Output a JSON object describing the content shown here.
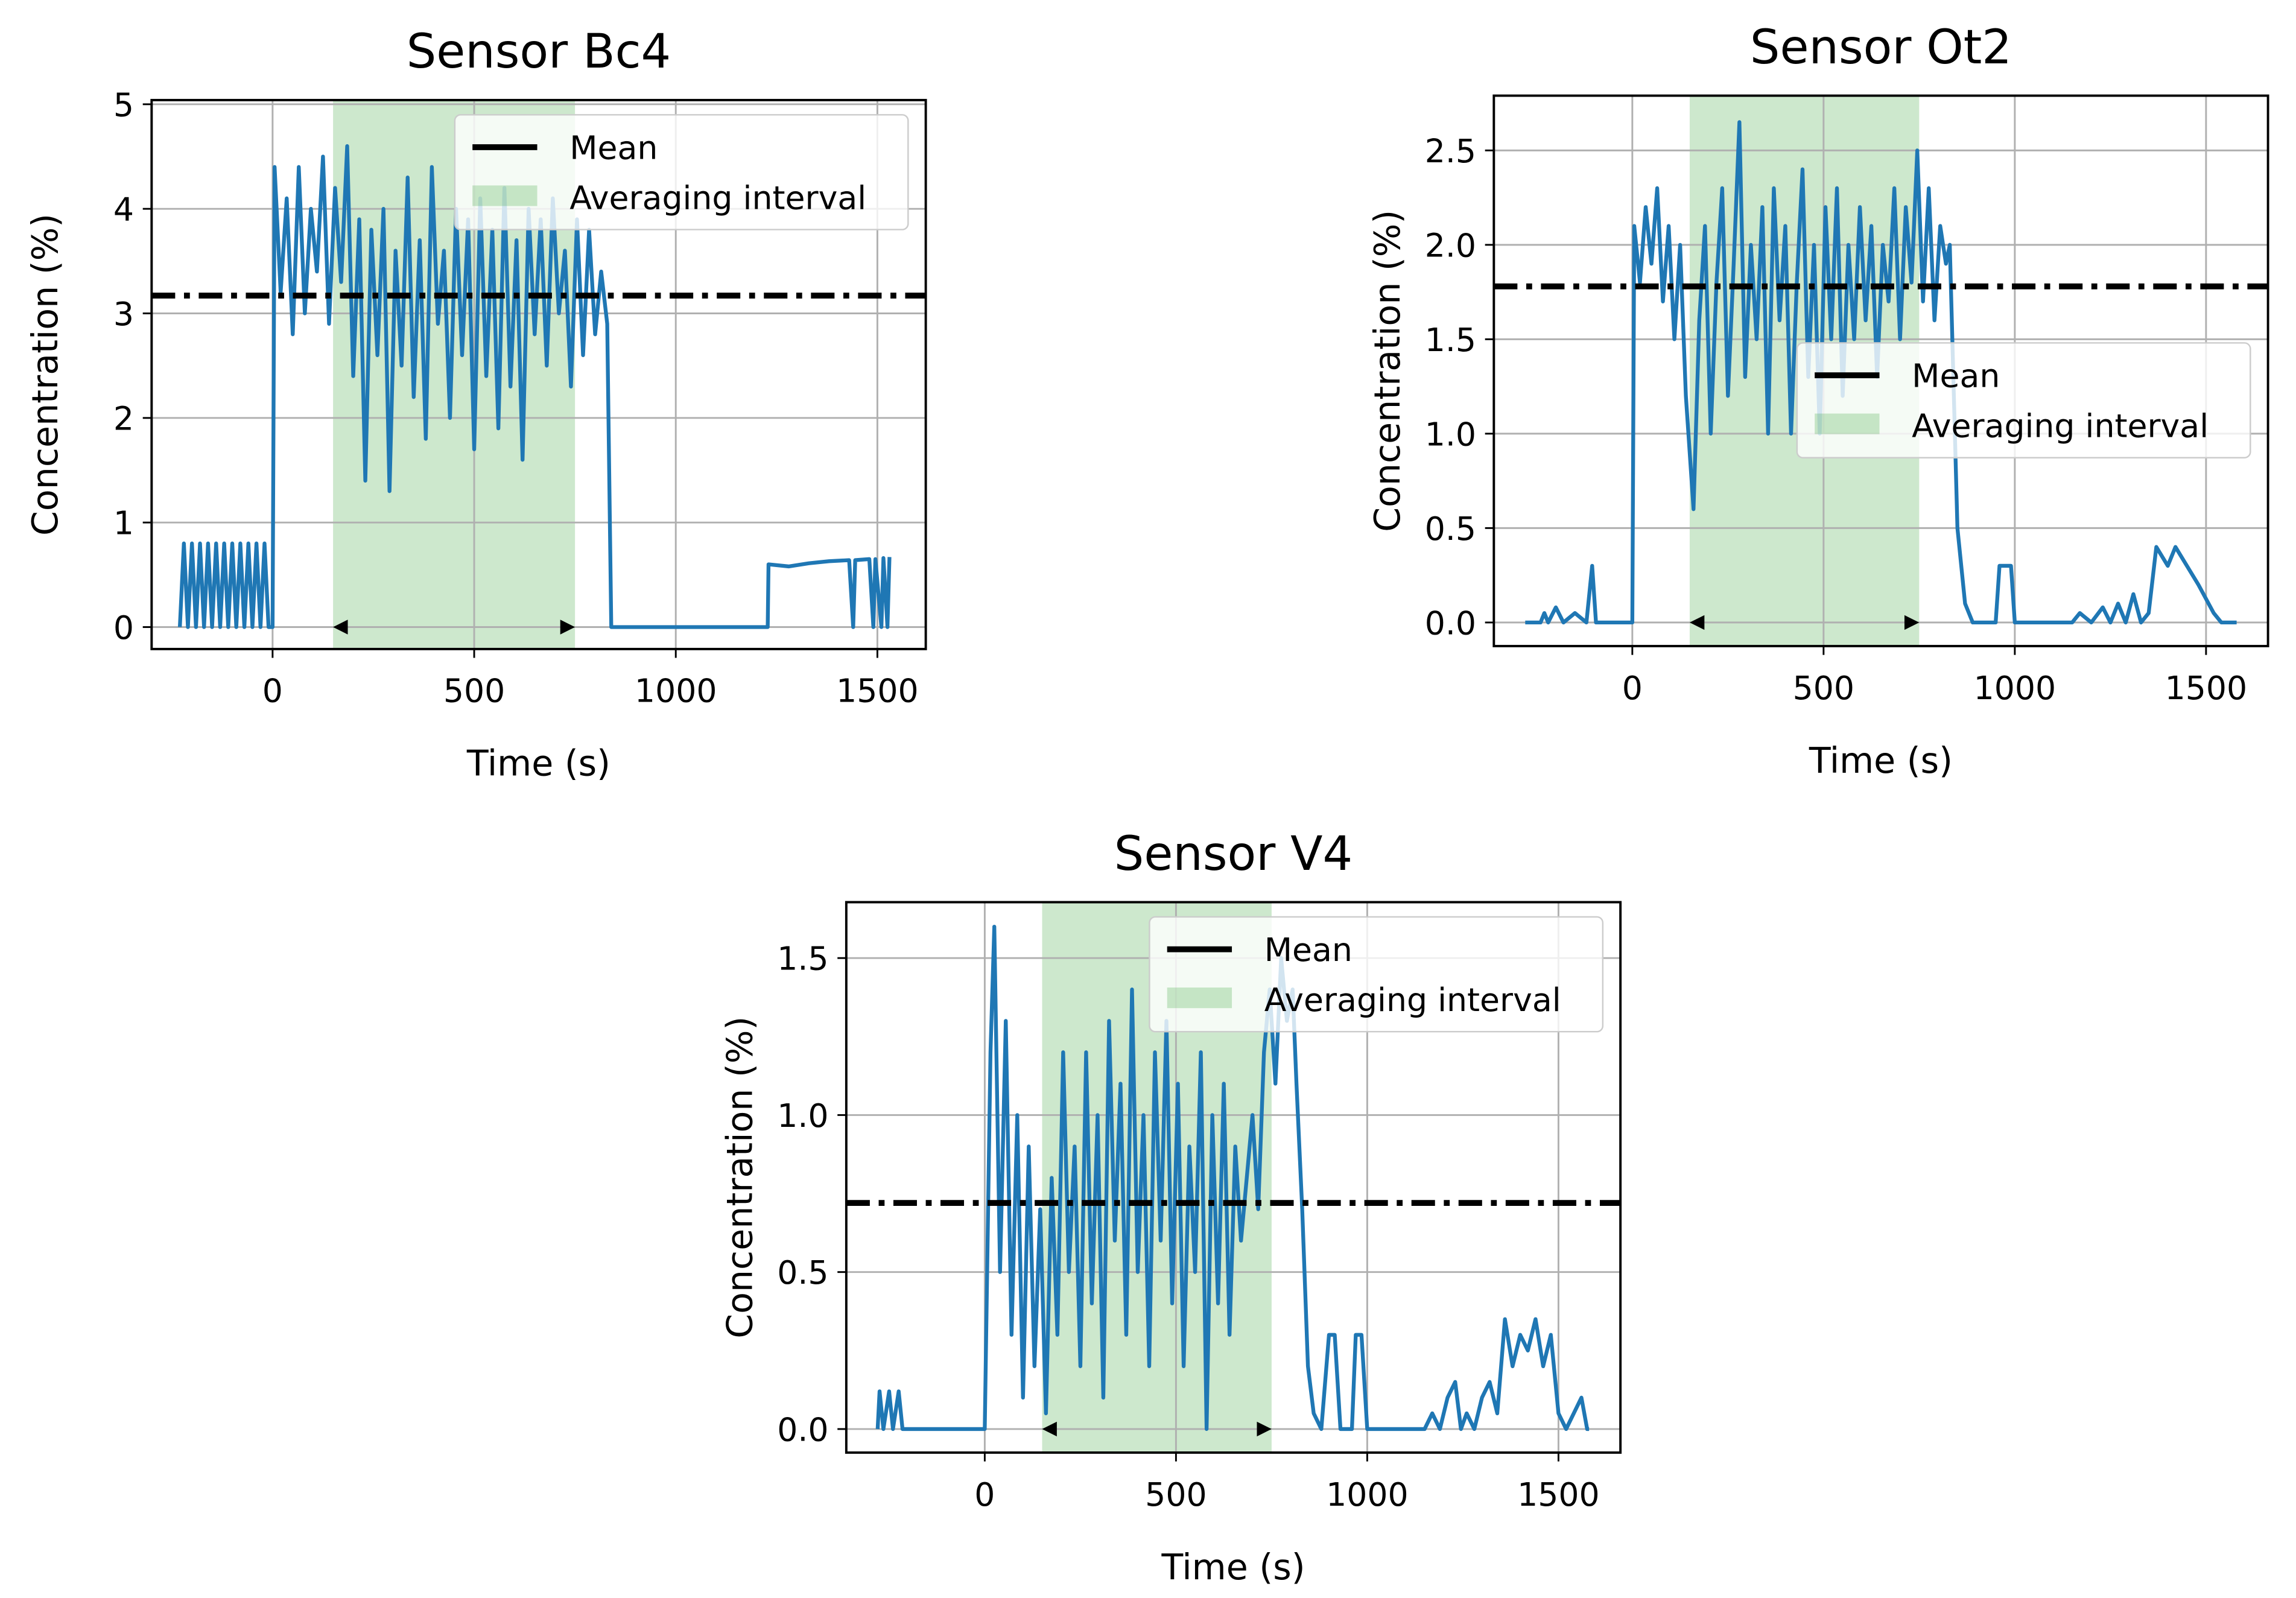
{
  "chart_data": [
    {
      "type": "line",
      "title": "Sensor Bc4",
      "x_label": "Time (s)",
      "y_label": "Concentration (%)",
      "xlim": [
        -300,
        1620
      ],
      "ylim": [
        -0.21,
        5.04
      ],
      "xticks": [
        0,
        500,
        1000,
        1500
      ],
      "yticks": [
        0,
        1,
        2,
        3,
        4,
        5
      ],
      "grid": true,
      "legend": "upper right",
      "x": [
        -230,
        -220,
        -210,
        -200,
        -190,
        -180,
        -170,
        -160,
        -150,
        -140,
        -130,
        -120,
        -110,
        -100,
        -90,
        -80,
        -70,
        -60,
        -50,
        -40,
        -30,
        -20,
        -10,
        0,
        5,
        20,
        35,
        50,
        65,
        80,
        95,
        110,
        125,
        140,
        155,
        170,
        185,
        200,
        215,
        230,
        245,
        260,
        275,
        290,
        305,
        320,
        335,
        350,
        365,
        380,
        395,
        410,
        425,
        440,
        455,
        470,
        485,
        500,
        515,
        530,
        545,
        560,
        575,
        590,
        605,
        620,
        635,
        650,
        665,
        680,
        695,
        710,
        725,
        740,
        755,
        770,
        785,
        800,
        815,
        830,
        840,
        900,
        1000,
        1100,
        1228,
        1230,
        1280,
        1330,
        1380,
        1430,
        1440,
        1445,
        1480,
        1490,
        1495,
        1510,
        1515,
        1525,
        1530
      ],
      "series": [
        {
          "color": "#1f77b4",
          "values": [
            0,
            0.8,
            0,
            0.8,
            0,
            0.8,
            0,
            0.8,
            0,
            0.8,
            0,
            0.8,
            0,
            0.8,
            0,
            0.8,
            0,
            0.8,
            0,
            0.8,
            0,
            0.8,
            0,
            0,
            4.4,
            3.2,
            4.1,
            2.8,
            4.4,
            3.0,
            4.0,
            3.4,
            4.5,
            2.9,
            4.2,
            3.3,
            4.6,
            2.4,
            3.9,
            1.4,
            3.8,
            2.6,
            4.0,
            1.3,
            3.6,
            2.5,
            4.3,
            2.2,
            3.7,
            1.8,
            4.4,
            2.9,
            3.6,
            2.0,
            4.0,
            2.6,
            3.9,
            1.7,
            4.1,
            2.4,
            3.8,
            1.9,
            4.2,
            2.3,
            3.7,
            1.6,
            4.0,
            2.8,
            3.9,
            2.5,
            4.1,
            3.0,
            3.6,
            2.3,
            3.9,
            2.6,
            3.8,
            2.8,
            3.4,
            2.9,
            0,
            0,
            0,
            0,
            0,
            0.6,
            0.58,
            0.61,
            0.63,
            0.64,
            0,
            0.64,
            0.65,
            0,
            0.65,
            0,
            0.66,
            0,
            0.67
          ]
        }
      ],
      "mean": {
        "name": "Mean",
        "value": 3.17,
        "color": "#000000"
      },
      "interval": {
        "name": "Averaging interval",
        "start": 150,
        "end": 750,
        "color": "#2ca02c"
      }
    },
    {
      "type": "line",
      "title": "Sensor Ot2",
      "x_label": "Time (s)",
      "y_label": "Concentration (%)",
      "xlim": [
        -362,
        1662
      ],
      "ylim": [
        -0.125,
        2.79
      ],
      "xticks": [
        0,
        500,
        1000,
        1500
      ],
      "yticks": [
        {
          "value": 0,
          "label": "0.0"
        },
        {
          "value": 0.5,
          "label": "0.5"
        },
        {
          "value": 1,
          "label": "1.0"
        },
        {
          "value": 1.5,
          "label": "1.5"
        },
        {
          "value": 2,
          "label": "2.0"
        },
        {
          "value": 2.5,
          "label": "2.5"
        }
      ],
      "grid": true,
      "legend": "center right",
      "x": [
        -280,
        -240,
        -230,
        -220,
        -200,
        -180,
        -150,
        -120,
        -105,
        -95,
        0,
        5,
        20,
        35,
        50,
        65,
        80,
        95,
        110,
        125,
        140,
        160,
        175,
        190,
        205,
        220,
        235,
        250,
        265,
        280,
        295,
        310,
        325,
        340,
        355,
        370,
        385,
        400,
        415,
        430,
        445,
        460,
        475,
        490,
        505,
        520,
        535,
        550,
        565,
        580,
        595,
        610,
        625,
        640,
        655,
        670,
        685,
        700,
        715,
        730,
        745,
        760,
        775,
        790,
        805,
        820,
        830,
        850,
        870,
        890,
        950,
        960,
        990,
        1000,
        1150,
        1170,
        1200,
        1230,
        1250,
        1270,
        1290,
        1310,
        1330,
        1350,
        1370,
        1400,
        1420,
        1450,
        1480,
        1520,
        1540,
        1580
      ],
      "series": [
        {
          "color": "#1f77b4",
          "values": [
            0,
            0,
            0.05,
            0,
            0.08,
            0,
            0.05,
            0,
            0.3,
            0,
            0,
            2.1,
            1.8,
            2.2,
            1.9,
            2.3,
            1.7,
            2.1,
            1.5,
            2.0,
            1.2,
            0.6,
            1.6,
            2.1,
            1.0,
            1.8,
            2.3,
            1.2,
            1.9,
            2.65,
            1.3,
            2.0,
            1.5,
            2.2,
            1.0,
            2.3,
            1.6,
            2.1,
            1.0,
            1.8,
            2.4,
            1.3,
            2.0,
            1.0,
            2.2,
            1.5,
            2.3,
            1.2,
            2.0,
            1.5,
            2.2,
            1.6,
            2.1,
            1.3,
            2.0,
            1.7,
            2.3,
            1.5,
            2.2,
            1.8,
            2.5,
            1.7,
            2.3,
            1.6,
            2.1,
            1.9,
            2.0,
            0.5,
            0.1,
            0,
            0,
            0.3,
            0.3,
            0,
            0,
            0.05,
            0,
            0.08,
            0,
            0.1,
            0,
            0.15,
            0,
            0.05,
            0.4,
            0.3,
            0.4,
            0.3,
            0.2,
            0.05,
            0,
            0
          ]
        }
      ],
      "mean": {
        "name": "Mean",
        "value": 1.78,
        "color": "#000000"
      },
      "interval": {
        "name": "Averaging interval",
        "start": 150,
        "end": 750,
        "color": "#2ca02c"
      }
    },
    {
      "type": "line",
      "title": "Sensor V4",
      "x_label": "Time (s)",
      "y_label": "Concentration (%)",
      "xlim": [
        -362,
        1662
      ],
      "ylim": [
        -0.075,
        1.678
      ],
      "xticks": [
        0,
        500,
        1000,
        1500
      ],
      "yticks": [
        {
          "value": 0,
          "label": "0.0"
        },
        {
          "value": 0.5,
          "label": "0.5"
        },
        {
          "value": 1,
          "label": "1.0"
        },
        {
          "value": 1.5,
          "label": "1.5"
        }
      ],
      "grid": true,
      "legend": "upper right",
      "x": [
        -280,
        -275,
        -265,
        -250,
        -240,
        -225,
        -215,
        -200,
        0,
        15,
        25,
        40,
        55,
        70,
        85,
        100,
        115,
        130,
        145,
        160,
        175,
        190,
        205,
        220,
        235,
        250,
        265,
        280,
        295,
        310,
        325,
        340,
        355,
        370,
        385,
        400,
        415,
        430,
        445,
        460,
        475,
        490,
        505,
        520,
        535,
        550,
        565,
        580,
        595,
        610,
        625,
        640,
        655,
        670,
        685,
        700,
        715,
        730,
        745,
        760,
        775,
        790,
        805,
        815,
        830,
        845,
        860,
        880,
        900,
        915,
        930,
        960,
        970,
        985,
        1000,
        1150,
        1170,
        1190,
        1210,
        1230,
        1245,
        1260,
        1280,
        1300,
        1320,
        1340,
        1360,
        1380,
        1400,
        1420,
        1440,
        1460,
        1480,
        1500,
        1520,
        1560,
        1575,
        1580
      ],
      "series": [
        {
          "color": "#1f77b4",
          "values": [
            0,
            0.12,
            0,
            0.12,
            0,
            0.12,
            0,
            0,
            0,
            1.2,
            1.6,
            0.5,
            1.3,
            0.3,
            1.0,
            0.1,
            0.9,
            0.2,
            0.7,
            0.05,
            0.8,
            0.3,
            1.2,
            0.5,
            0.9,
            0.2,
            1.2,
            0.4,
            1.0,
            0.1,
            1.3,
            0.6,
            1.1,
            0.3,
            1.4,
            0.5,
            1.0,
            0.2,
            1.2,
            0.6,
            1.3,
            0.4,
            1.1,
            0.2,
            0.9,
            0.5,
            1.2,
            0,
            1.0,
            0.4,
            1.1,
            0.3,
            0.9,
            0.6,
            0.8,
            1.0,
            0.7,
            1.2,
            1.4,
            1.1,
            1.5,
            1.3,
            1.4,
            1.1,
            0.7,
            0.2,
            0.05,
            0,
            0.3,
            0.3,
            0,
            0,
            0.3,
            0.3,
            0,
            0,
            0.05,
            0,
            0.1,
            0.15,
            0,
            0.05,
            0,
            0.1,
            0.15,
            0.05,
            0.35,
            0.2,
            0.3,
            0.25,
            0.35,
            0.2,
            0.3,
            0.05,
            0,
            0.1,
            0,
            0
          ]
        }
      ],
      "mean": {
        "name": "Mean",
        "value": 0.72,
        "color": "#000000"
      },
      "interval": {
        "name": "Averaging interval",
        "start": 150,
        "end": 750,
        "color": "#2ca02c"
      }
    }
  ]
}
